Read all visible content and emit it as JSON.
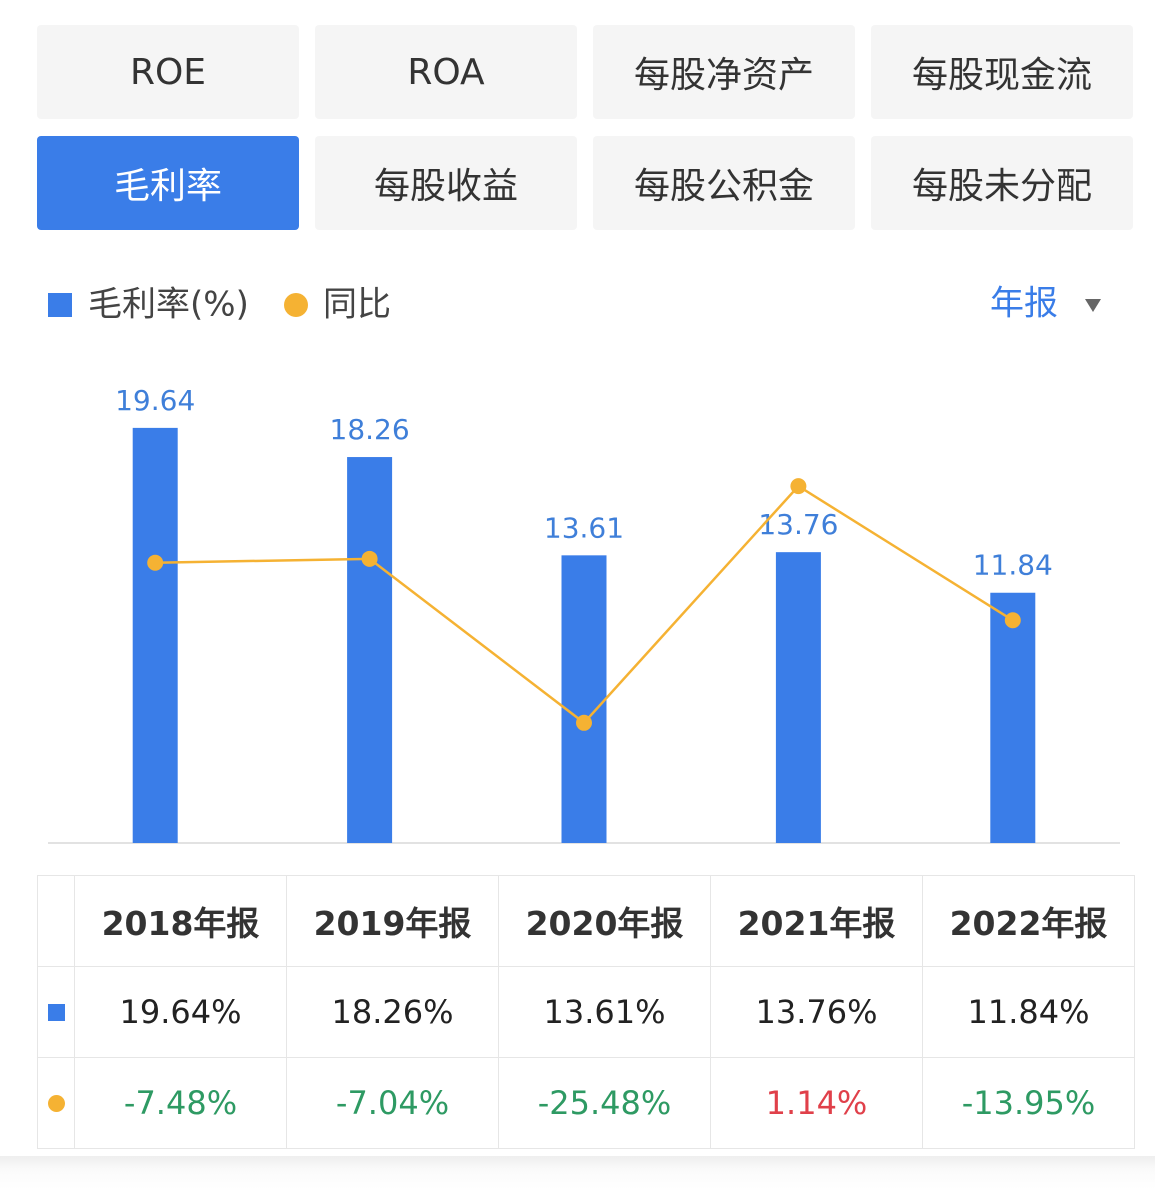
{
  "tabs": [
    "ROE",
    "ROA",
    "每股净资产",
    "每股现金流",
    "毛利率",
    "每股收益",
    "每股公积金",
    "每股未分配"
  ],
  "active_tab": 4,
  "period_selector": "年报",
  "chart_data": {
    "type": "bar_line",
    "categories": [
      "2018年报",
      "2019年报",
      "2020年报",
      "2021年报",
      "2022年报"
    ],
    "series": [
      {
        "name": "毛利率(%)",
        "color": "#3a7de8",
        "values": [
          19.64,
          18.26,
          13.61,
          13.76,
          11.84
        ]
      },
      {
        "name": "同比",
        "color": "#f5b233",
        "axis": "y2",
        "values": [
          -7.48,
          -7.04,
          -25.48,
          1.14,
          -13.95
        ]
      }
    ],
    "ylim": [
      0,
      22
    ],
    "y2lim": [
      -39,
      13.3
    ]
  },
  "table": {
    "rows": [
      [
        "19.64%",
        "18.26%",
        "13.61%",
        "13.76%",
        "11.84%"
      ],
      [
        "-7.48%",
        "-7.04%",
        "-25.48%",
        "1.14%",
        "-13.95%"
      ]
    ]
  }
}
